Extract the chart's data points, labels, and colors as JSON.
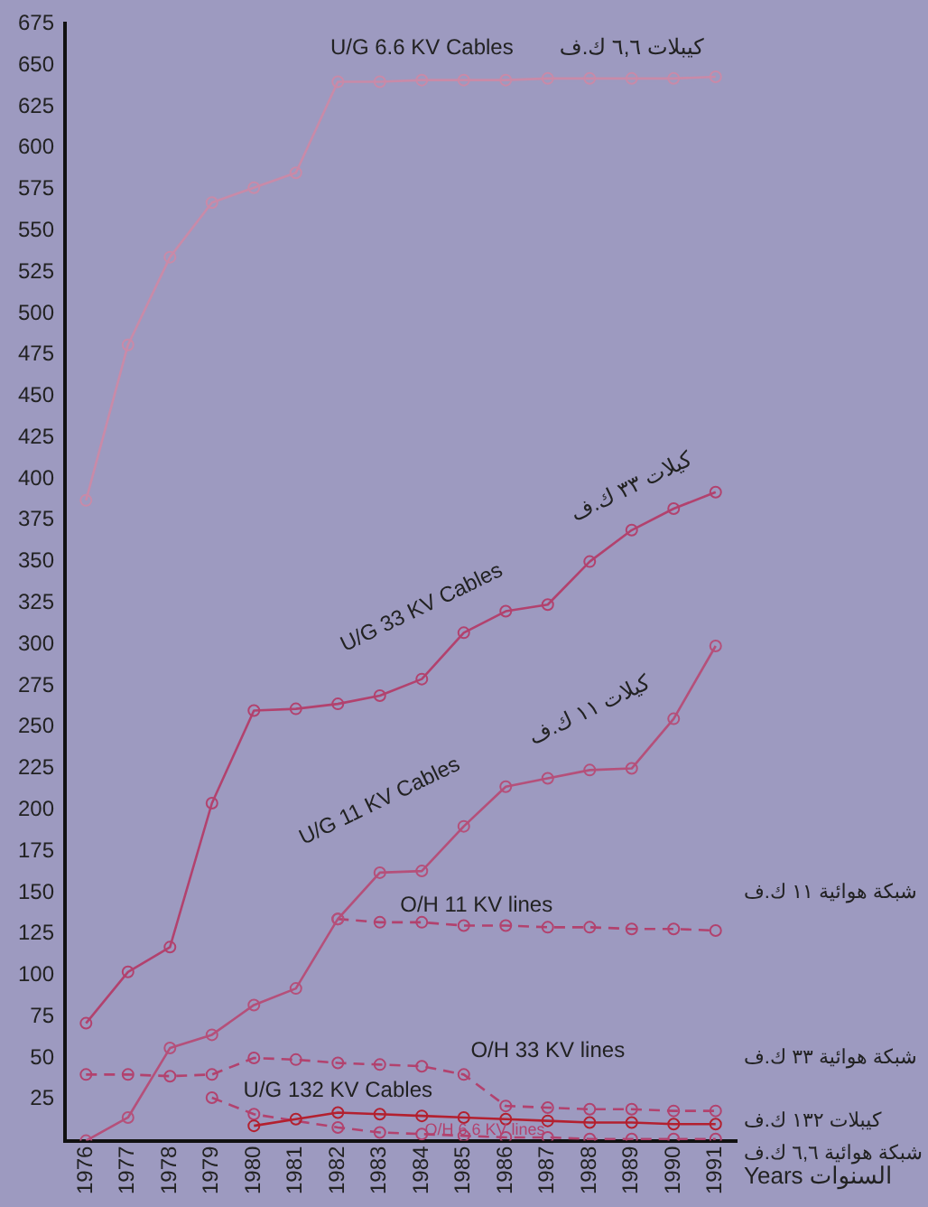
{
  "chart_data": {
    "type": "line",
    "xlabel": "Years السنوات",
    "categories": [
      "1976",
      "1977",
      "1978",
      "1979",
      "1980",
      "1981",
      "1982",
      "1983",
      "1984",
      "1985",
      "1986",
      "1987",
      "1988",
      "1989",
      "1990",
      "1991"
    ],
    "series": [
      {
        "name": "U/G 6.6 KV Cables",
        "color": "#c98aa8",
        "values": [
          387,
          481,
          534,
          567,
          576,
          585,
          640,
          640,
          641,
          641,
          641,
          642,
          642,
          642,
          642,
          643
        ]
      },
      {
        "name": "U/G 33 KV Cables",
        "color": "#b2426e",
        "values": [
          71,
          102,
          117,
          204,
          260,
          261,
          264,
          269,
          279,
          307,
          320,
          324,
          350,
          369,
          382,
          392
        ]
      },
      {
        "name": "U/G 11 KV Cables",
        "color": "#b5507a",
        "values": [
          0,
          14,
          56,
          64,
          82,
          92,
          134,
          162,
          163,
          190,
          214,
          219,
          224,
          225,
          255,
          299
        ]
      },
      {
        "name": "O/H 11 KV lines",
        "color": "#b2426e",
        "line_style": "dashed",
        "values": [
          null,
          null,
          null,
          null,
          null,
          null,
          134,
          132,
          132,
          130,
          130,
          129,
          129,
          128,
          128,
          127
        ]
      },
      {
        "name": "O/H 33 KV lines",
        "color": "#b2426e",
        "line_style": "dashed",
        "values": [
          40,
          40,
          39,
          40,
          50,
          49,
          47,
          46,
          45,
          40,
          21,
          20,
          19,
          19,
          18,
          18
        ]
      },
      {
        "name": "U/G 132 KV Cables",
        "color": "#b3202f",
        "values": [
          null,
          null,
          null,
          null,
          9,
          13,
          17,
          16,
          15,
          14,
          13,
          12,
          11,
          11,
          10,
          10
        ]
      },
      {
        "name": "O/H 6.6 KV lines",
        "color": "#b2426e",
        "line_style": "dashed",
        "values": [
          null,
          null,
          null,
          26,
          16,
          null,
          8,
          5,
          4,
          3,
          2,
          2,
          1,
          1,
          1,
          1
        ]
      }
    ],
    "ylim": [
      0,
      675
    ],
    "yticks": [
      25,
      50,
      75,
      100,
      125,
      150,
      175,
      200,
      225,
      250,
      275,
      300,
      325,
      350,
      375,
      400,
      425,
      450,
      475,
      500,
      525,
      550,
      575,
      600,
      625,
      650,
      675
    ],
    "grid": false,
    "legend": false,
    "marker": "circle",
    "line_style": "solid",
    "annotations": [
      "كيبلات ٦,٦ ك.ف",
      "كيلات ٣٣ ك.ف",
      "كيلات ١١ ك.ف",
      "شبكة هوائية ١١ ك.ف",
      "شبكة هوائية ٣٣ ك.ف",
      "كيبلات ١٣٢ ك.ف",
      "شبكة هوائية ٦,٦ ك.ف"
    ]
  }
}
